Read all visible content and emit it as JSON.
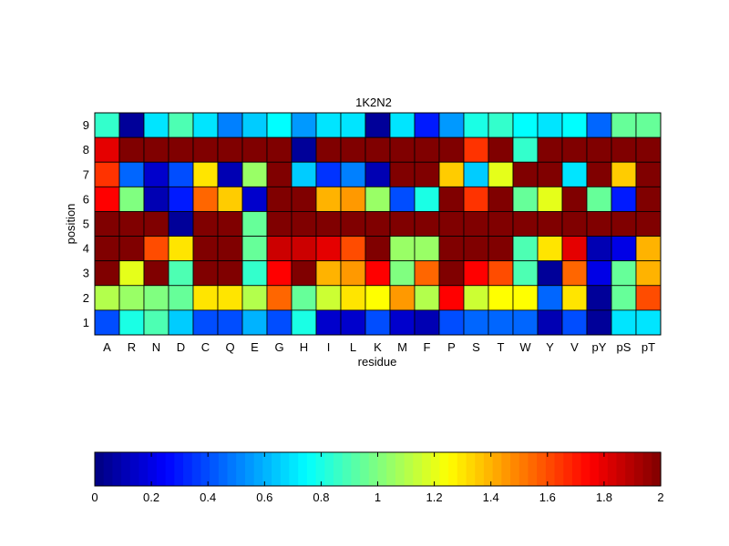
{
  "chart_data": [
    {
      "type": "heatmap",
      "title": "1K2N2",
      "xlabel": "residue",
      "ylabel": "position",
      "x_categories": [
        "A",
        "R",
        "N",
        "D",
        "C",
        "Q",
        "E",
        "G",
        "H",
        "I",
        "L",
        "K",
        "M",
        "F",
        "P",
        "S",
        "T",
        "W",
        "Y",
        "V",
        "pY",
        "pS",
        "pT"
      ],
      "y_categories": [
        "9",
        "8",
        "7",
        "6",
        "5",
        "4",
        "3",
        "2",
        "1"
      ],
      "colormap": "jet",
      "clim": [
        0,
        2
      ],
      "values": [
        [
          0.85,
          0.05,
          0.7,
          0.9,
          0.7,
          0.5,
          0.65,
          0.75,
          0.55,
          0.7,
          0.7,
          0.05,
          0.7,
          0.3,
          0.55,
          0.8,
          0.85,
          0.75,
          0.7,
          0.75,
          0.45,
          0.95,
          0.95
        ],
        [
          1.8,
          2.0,
          2.0,
          2.0,
          2.0,
          2.0,
          2.0,
          2.0,
          0.05,
          2.0,
          2.0,
          2.0,
          2.0,
          2.0,
          2.0,
          1.65,
          2.0,
          0.85,
          2.0,
          2.0,
          2.0,
          2.0,
          2.0
        ],
        [
          1.65,
          0.45,
          0.15,
          0.4,
          1.3,
          0.1,
          1.05,
          2.0,
          0.65,
          0.35,
          0.5,
          0.1,
          2.0,
          2.0,
          1.35,
          0.65,
          1.2,
          2.0,
          2.0,
          0.7,
          2.0,
          1.35,
          2.0
        ],
        [
          1.75,
          1.0,
          0.1,
          0.3,
          1.55,
          1.35,
          0.15,
          2.0,
          2.0,
          1.4,
          1.45,
          1.05,
          0.4,
          0.8,
          2.0,
          1.65,
          2.0,
          0.95,
          1.2,
          2.0,
          0.95,
          0.3,
          2.0
        ],
        [
          2.0,
          2.0,
          2.0,
          0.05,
          2.0,
          2.0,
          0.95,
          2.0,
          2.0,
          2.0,
          2.0,
          2.0,
          2.0,
          2.0,
          2.0,
          2.0,
          2.0,
          2.0,
          2.0,
          2.0,
          2.0,
          2.0,
          2.0
        ],
        [
          2.0,
          2.0,
          1.6,
          1.3,
          2.0,
          2.0,
          0.95,
          1.85,
          1.85,
          1.8,
          1.6,
          2.0,
          1.05,
          1.05,
          2.0,
          2.0,
          2.0,
          0.9,
          1.3,
          1.8,
          0.1,
          0.2,
          1.4
        ],
        [
          2.0,
          1.2,
          2.0,
          0.9,
          2.0,
          2.0,
          0.85,
          1.75,
          2.0,
          1.4,
          1.45,
          1.75,
          1.0,
          1.55,
          2.0,
          1.75,
          1.6,
          0.9,
          0.05,
          1.55,
          0.2,
          0.95,
          1.4
        ],
        [
          1.1,
          1.05,
          1.0,
          0.95,
          1.3,
          1.3,
          1.1,
          1.55,
          0.95,
          1.15,
          1.3,
          1.25,
          1.45,
          1.1,
          1.75,
          1.15,
          1.25,
          1.25,
          0.45,
          1.3,
          0.05,
          0.95,
          1.6
        ],
        [
          0.4,
          0.8,
          0.9,
          0.65,
          0.4,
          0.4,
          0.6,
          0.4,
          0.8,
          0.15,
          0.15,
          0.4,
          0.15,
          0.1,
          0.4,
          0.45,
          0.45,
          0.45,
          0.1,
          0.4,
          0.05,
          0.7,
          0.7
        ]
      ]
    },
    {
      "type": "colorbar",
      "ticks": [
        "0",
        "0.2",
        "0.4",
        "0.6",
        "0.8",
        "1",
        "1.2",
        "1.4",
        "1.6",
        "1.8",
        "2"
      ],
      "range": [
        0,
        2
      ]
    }
  ]
}
